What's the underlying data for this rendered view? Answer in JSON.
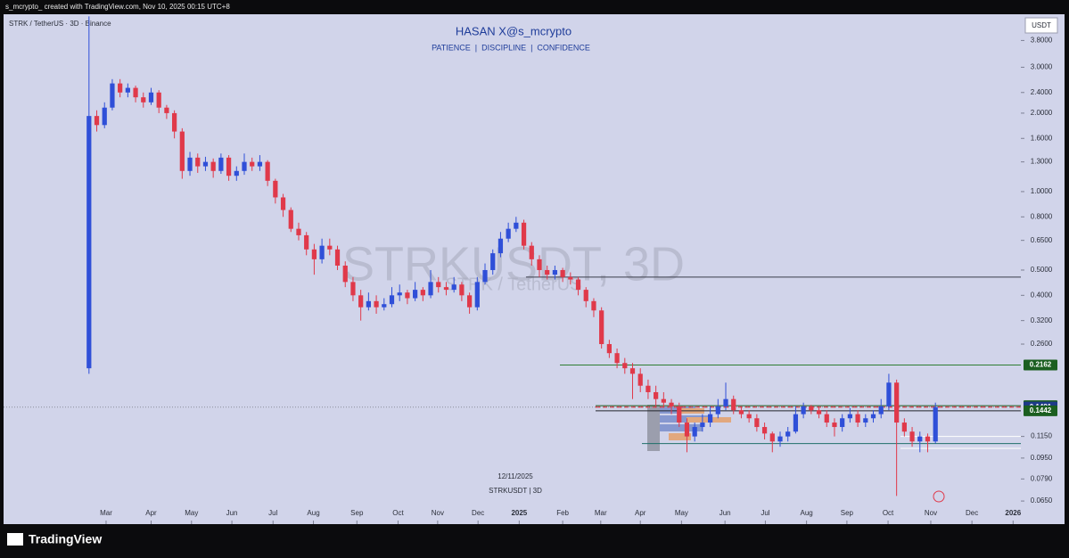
{
  "header": "s_mcrypto_ created with TradingView.com, Nov 10, 2025 00:15 UTC+8",
  "brand": "TradingView",
  "chart_data": {
    "type": "candlestick",
    "symbol_line": "STRK / TetherUS · 3D · Binance",
    "title": "HASAN X@s_mcrypto",
    "subtitle": "PATIENCE  |  DISCIPLINE  |  CONFIDENCE",
    "watermark": "STRKUSDT, 3D",
    "watermark_sub": "STRK / TetherUS",
    "date_note": "12/11/2025",
    "symbol_note": "STRKUSDT | 3D",
    "currency": "USDT",
    "log_scale": true,
    "up_color": "#2f4fd8",
    "down_color": "#e0394a",
    "ylim": [
      0.053,
      4.79
    ],
    "xlim": [
      -11,
      120
    ],
    "yticks": [
      {
        "value": 3.8,
        "label": "3.8000"
      },
      {
        "value": 3,
        "label": "3.0000"
      },
      {
        "value": 2.4,
        "label": "2.4000"
      },
      {
        "value": 2,
        "label": "2.0000"
      },
      {
        "value": 1.6,
        "label": "1.6000"
      },
      {
        "value": 1.3,
        "label": "1.3000"
      },
      {
        "value": 1,
        "label": "1.0000"
      },
      {
        "value": 0.8,
        "label": "0.8000"
      },
      {
        "value": 0.65,
        "label": "0.6500"
      },
      {
        "value": 0.5,
        "label": "0.5000"
      },
      {
        "value": 0.4,
        "label": "0.4000"
      },
      {
        "value": 0.32,
        "label": "0.3200"
      },
      {
        "value": 0.26,
        "label": "0.2600"
      },
      {
        "value": 0.115,
        "label": "0.1150"
      },
      {
        "value": 0.095,
        "label": "0.0950"
      },
      {
        "value": 0.079,
        "label": "0.0790"
      },
      {
        "value": 0.065,
        "label": "0.0650"
      }
    ],
    "xticks": [
      {
        "value": 2.2,
        "label": "Mar"
      },
      {
        "value": 8,
        "label": "Apr"
      },
      {
        "value": 13.2,
        "label": "May"
      },
      {
        "value": 18.4,
        "label": "Jun"
      },
      {
        "value": 23.7,
        "label": "Jul"
      },
      {
        "value": 28.9,
        "label": "Aug"
      },
      {
        "value": 34.5,
        "label": "Sep"
      },
      {
        "value": 39.8,
        "label": "Oct"
      },
      {
        "value": 44.9,
        "label": "Nov"
      },
      {
        "value": 50.1,
        "label": "Dec"
      },
      {
        "value": 55.4,
        "label": "2025"
      },
      {
        "value": 61,
        "label": "Feb"
      },
      {
        "value": 65.9,
        "label": "Mar"
      },
      {
        "value": 71,
        "label": "Apr"
      },
      {
        "value": 76.3,
        "label": "May"
      },
      {
        "value": 81.9,
        "label": "Jun"
      },
      {
        "value": 87.1,
        "label": "Jul"
      },
      {
        "value": 92.4,
        "label": "Aug"
      },
      {
        "value": 97.6,
        "label": "Sep"
      },
      {
        "value": 102.9,
        "label": "Oct"
      },
      {
        "value": 108.4,
        "label": "Nov"
      },
      {
        "value": 113.7,
        "label": "Dec"
      },
      {
        "value": 119,
        "label": "2026"
      }
    ],
    "lines": [
      {
        "value": 0.47,
        "color": "#3a3d4a",
        "style": "solid"
      },
      {
        "value": 0.2162,
        "color": "#2e7d32",
        "style": "solid"
      },
      {
        "value": 0.1509,
        "color": "#1b5e20",
        "style": "solid"
      },
      {
        "value": 0.1491,
        "color": "#e0394a",
        "style": "dashed"
      },
      {
        "value": 0.1442,
        "color": "#22242c",
        "style": "solid"
      },
      {
        "value": 0.115,
        "color": "#ffffff",
        "style": "solid"
      },
      {
        "value": 0.108,
        "color": "#1f6f6a",
        "style": "solid"
      },
      {
        "value": 0.1035,
        "color": "#ffffff",
        "style": "solid"
      }
    ],
    "price_labels": [
      {
        "value": 0.2162,
        "color": "#1b5e20"
      },
      {
        "value": 0.1509,
        "color": "#1b5e20"
      },
      {
        "value": 0.1491,
        "color": "#1e3a8a"
      },
      {
        "value": 0.1442,
        "color": "#1b5e20"
      }
    ],
    "ohlc": [
      [
        0.21,
        4.7,
        0.2,
        1.95
      ],
      [
        1.95,
        2.05,
        1.7,
        1.8
      ],
      [
        1.8,
        2.2,
        1.75,
        2.1
      ],
      [
        2.1,
        2.7,
        2.05,
        2.6
      ],
      [
        2.6,
        2.7,
        2.3,
        2.4
      ],
      [
        2.4,
        2.6,
        2.3,
        2.5
      ],
      [
        2.5,
        2.55,
        2.2,
        2.3
      ],
      [
        2.3,
        2.4,
        2.1,
        2.2
      ],
      [
        2.2,
        2.5,
        2.15,
        2.4
      ],
      [
        2.4,
        2.45,
        2.0,
        2.1
      ],
      [
        2.1,
        2.15,
        1.9,
        2.0
      ],
      [
        2.0,
        2.05,
        1.6,
        1.7
      ],
      [
        1.7,
        1.75,
        1.12,
        1.2
      ],
      [
        1.2,
        1.42,
        1.15,
        1.35
      ],
      [
        1.35,
        1.4,
        1.18,
        1.25
      ],
      [
        1.25,
        1.36,
        1.2,
        1.3
      ],
      [
        1.3,
        1.34,
        1.13,
        1.2
      ],
      [
        1.2,
        1.4,
        1.17,
        1.35
      ],
      [
        1.35,
        1.38,
        1.1,
        1.15
      ],
      [
        1.15,
        1.25,
        1.1,
        1.2
      ],
      [
        1.2,
        1.4,
        1.16,
        1.3
      ],
      [
        1.3,
        1.35,
        1.2,
        1.25
      ],
      [
        1.25,
        1.38,
        1.2,
        1.3
      ],
      [
        1.3,
        1.32,
        1.05,
        1.1
      ],
      [
        1.1,
        1.12,
        0.9,
        0.95
      ],
      [
        0.95,
        0.98,
        0.8,
        0.85
      ],
      [
        0.85,
        0.87,
        0.7,
        0.72
      ],
      [
        0.72,
        0.76,
        0.65,
        0.68
      ],
      [
        0.68,
        0.7,
        0.57,
        0.6
      ],
      [
        0.6,
        0.63,
        0.48,
        0.55
      ],
      [
        0.55,
        0.66,
        0.53,
        0.62
      ],
      [
        0.62,
        0.66,
        0.57,
        0.6
      ],
      [
        0.6,
        0.62,
        0.5,
        0.52
      ],
      [
        0.52,
        0.54,
        0.43,
        0.45
      ],
      [
        0.45,
        0.47,
        0.38,
        0.4
      ],
      [
        0.4,
        0.42,
        0.32,
        0.36
      ],
      [
        0.36,
        0.41,
        0.35,
        0.38
      ],
      [
        0.38,
        0.4,
        0.34,
        0.36
      ],
      [
        0.36,
        0.39,
        0.35,
        0.37
      ],
      [
        0.37,
        0.43,
        0.36,
        0.4
      ],
      [
        0.4,
        0.44,
        0.38,
        0.41
      ],
      [
        0.41,
        0.42,
        0.37,
        0.39
      ],
      [
        0.39,
        0.45,
        0.38,
        0.42
      ],
      [
        0.42,
        0.43,
        0.38,
        0.4
      ],
      [
        0.4,
        0.5,
        0.39,
        0.45
      ],
      [
        0.45,
        0.47,
        0.41,
        0.43
      ],
      [
        0.43,
        0.45,
        0.4,
        0.42
      ],
      [
        0.42,
        0.47,
        0.41,
        0.44
      ],
      [
        0.44,
        0.45,
        0.38,
        0.4
      ],
      [
        0.4,
        0.41,
        0.34,
        0.36
      ],
      [
        0.36,
        0.47,
        0.35,
        0.45
      ],
      [
        0.45,
        0.53,
        0.44,
        0.5
      ],
      [
        0.5,
        0.6,
        0.48,
        0.58
      ],
      [
        0.58,
        0.7,
        0.56,
        0.66
      ],
      [
        0.66,
        0.76,
        0.64,
        0.72
      ],
      [
        0.72,
        0.8,
        0.7,
        0.76
      ],
      [
        0.76,
        0.78,
        0.6,
        0.62
      ],
      [
        0.62,
        0.64,
        0.52,
        0.55
      ],
      [
        0.55,
        0.57,
        0.47,
        0.5
      ],
      [
        0.5,
        0.52,
        0.46,
        0.48
      ],
      [
        0.48,
        0.52,
        0.46,
        0.5
      ],
      [
        0.5,
        0.51,
        0.45,
        0.47
      ],
      [
        0.47,
        0.49,
        0.44,
        0.46
      ],
      [
        0.46,
        0.47,
        0.4,
        0.42
      ],
      [
        0.42,
        0.43,
        0.36,
        0.38
      ],
      [
        0.38,
        0.39,
        0.33,
        0.35
      ],
      [
        0.35,
        0.36,
        0.25,
        0.26
      ],
      [
        0.26,
        0.27,
        0.23,
        0.24
      ],
      [
        0.24,
        0.25,
        0.21,
        0.22
      ],
      [
        0.22,
        0.23,
        0.2,
        0.21
      ],
      [
        0.21,
        0.22,
        0.16,
        0.2
      ],
      [
        0.2,
        0.21,
        0.17,
        0.18
      ],
      [
        0.18,
        0.19,
        0.16,
        0.17
      ],
      [
        0.17,
        0.18,
        0.15,
        0.16
      ],
      [
        0.16,
        0.17,
        0.15,
        0.155
      ],
      [
        0.155,
        0.16,
        0.14,
        0.15
      ],
      [
        0.15,
        0.155,
        0.125,
        0.13
      ],
      [
        0.13,
        0.135,
        0.1,
        0.115
      ],
      [
        0.115,
        0.13,
        0.11,
        0.125
      ],
      [
        0.125,
        0.14,
        0.12,
        0.13
      ],
      [
        0.13,
        0.15,
        0.125,
        0.14
      ],
      [
        0.14,
        0.16,
        0.135,
        0.15
      ],
      [
        0.15,
        0.185,
        0.145,
        0.16
      ],
      [
        0.16,
        0.165,
        0.14,
        0.145
      ],
      [
        0.145,
        0.15,
        0.135,
        0.14
      ],
      [
        0.14,
        0.145,
        0.13,
        0.135
      ],
      [
        0.135,
        0.14,
        0.12,
        0.125
      ],
      [
        0.125,
        0.13,
        0.112,
        0.118
      ],
      [
        0.118,
        0.12,
        0.1,
        0.11
      ],
      [
        0.11,
        0.12,
        0.105,
        0.115
      ],
      [
        0.115,
        0.125,
        0.11,
        0.12
      ],
      [
        0.12,
        0.15,
        0.118,
        0.14
      ],
      [
        0.14,
        0.155,
        0.135,
        0.15
      ],
      [
        0.15,
        0.152,
        0.14,
        0.145
      ],
      [
        0.145,
        0.15,
        0.135,
        0.14
      ],
      [
        0.14,
        0.145,
        0.125,
        0.13
      ],
      [
        0.13,
        0.135,
        0.115,
        0.125
      ],
      [
        0.125,
        0.14,
        0.12,
        0.135
      ],
      [
        0.135,
        0.148,
        0.13,
        0.14
      ],
      [
        0.14,
        0.145,
        0.125,
        0.13
      ],
      [
        0.13,
        0.14,
        0.125,
        0.135
      ],
      [
        0.135,
        0.145,
        0.13,
        0.14
      ],
      [
        0.14,
        0.16,
        0.135,
        0.15
      ],
      [
        0.15,
        0.2,
        0.145,
        0.185
      ],
      [
        0.185,
        0.19,
        0.068,
        0.13
      ],
      [
        0.13,
        0.135,
        0.115,
        0.12
      ],
      [
        0.12,
        0.125,
        0.105,
        0.11
      ],
      [
        0.11,
        0.12,
        0.1,
        0.115
      ],
      [
        0.115,
        0.118,
        0.1,
        0.11
      ],
      [
        0.11,
        0.155,
        0.108,
        0.149
      ]
    ]
  }
}
